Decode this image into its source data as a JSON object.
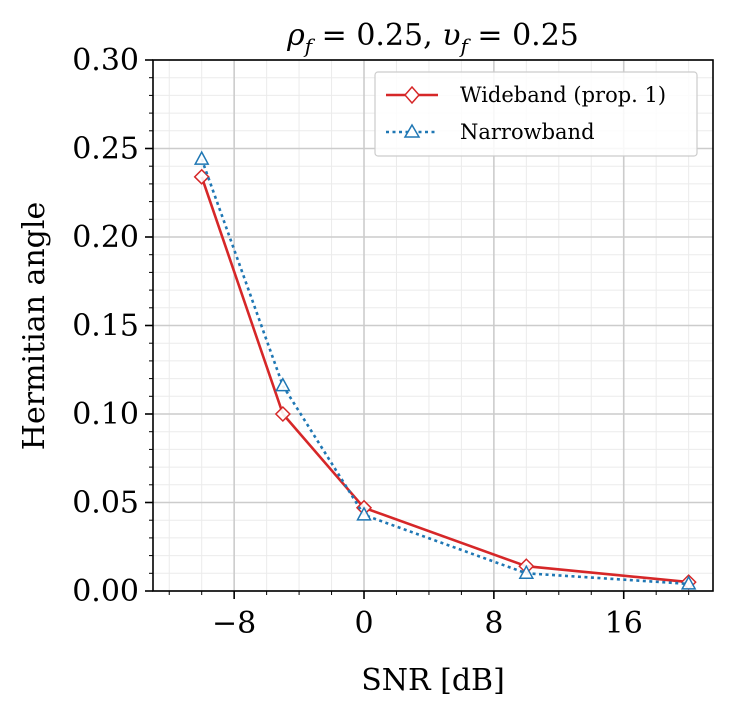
{
  "chart_data": {
    "type": "line",
    "title": "ρ_f = 0.25, υ_f = 0.25",
    "title_parts": {
      "rho": "ρ",
      "rho_sub": "f",
      "rho_val": " = 0.25, ",
      "ups": "υ",
      "ups_sub": "f",
      "ups_val": " = 0.25"
    },
    "xlabel": "SNR [dB]",
    "ylabel": "Hermitian angle",
    "xlim": [
      -13,
      21.5
    ],
    "ylim": [
      0,
      0.3
    ],
    "xticks": [
      -8,
      0,
      8,
      16
    ],
    "xtick_labels": [
      "−8",
      "0",
      "8",
      "16"
    ],
    "yticks": [
      0,
      0.05,
      0.1,
      0.15,
      0.2,
      0.25,
      0.3
    ],
    "ytick_labels": [
      "0.00",
      "0.05",
      "0.10",
      "0.15",
      "0.20",
      "0.25",
      "0.30"
    ],
    "x_minor_step": 2,
    "y_minor_step": 0.01,
    "grid": true,
    "legend_position": "top-right",
    "series": [
      {
        "name": "Wideband (prop. 1)",
        "color": "#d62728",
        "marker": "diamond",
        "linestyle": "solid",
        "x": [
          -10,
          -5,
          0,
          10,
          20
        ],
        "values": [
          0.234,
          0.1,
          0.047,
          0.014,
          0.005
        ]
      },
      {
        "name": "Narrowband",
        "color": "#1f77b4",
        "marker": "triangle",
        "linestyle": "dotted",
        "x": [
          -10,
          -5,
          0,
          10,
          20
        ],
        "values": [
          0.244,
          0.116,
          0.043,
          0.01,
          0.004
        ]
      }
    ]
  }
}
